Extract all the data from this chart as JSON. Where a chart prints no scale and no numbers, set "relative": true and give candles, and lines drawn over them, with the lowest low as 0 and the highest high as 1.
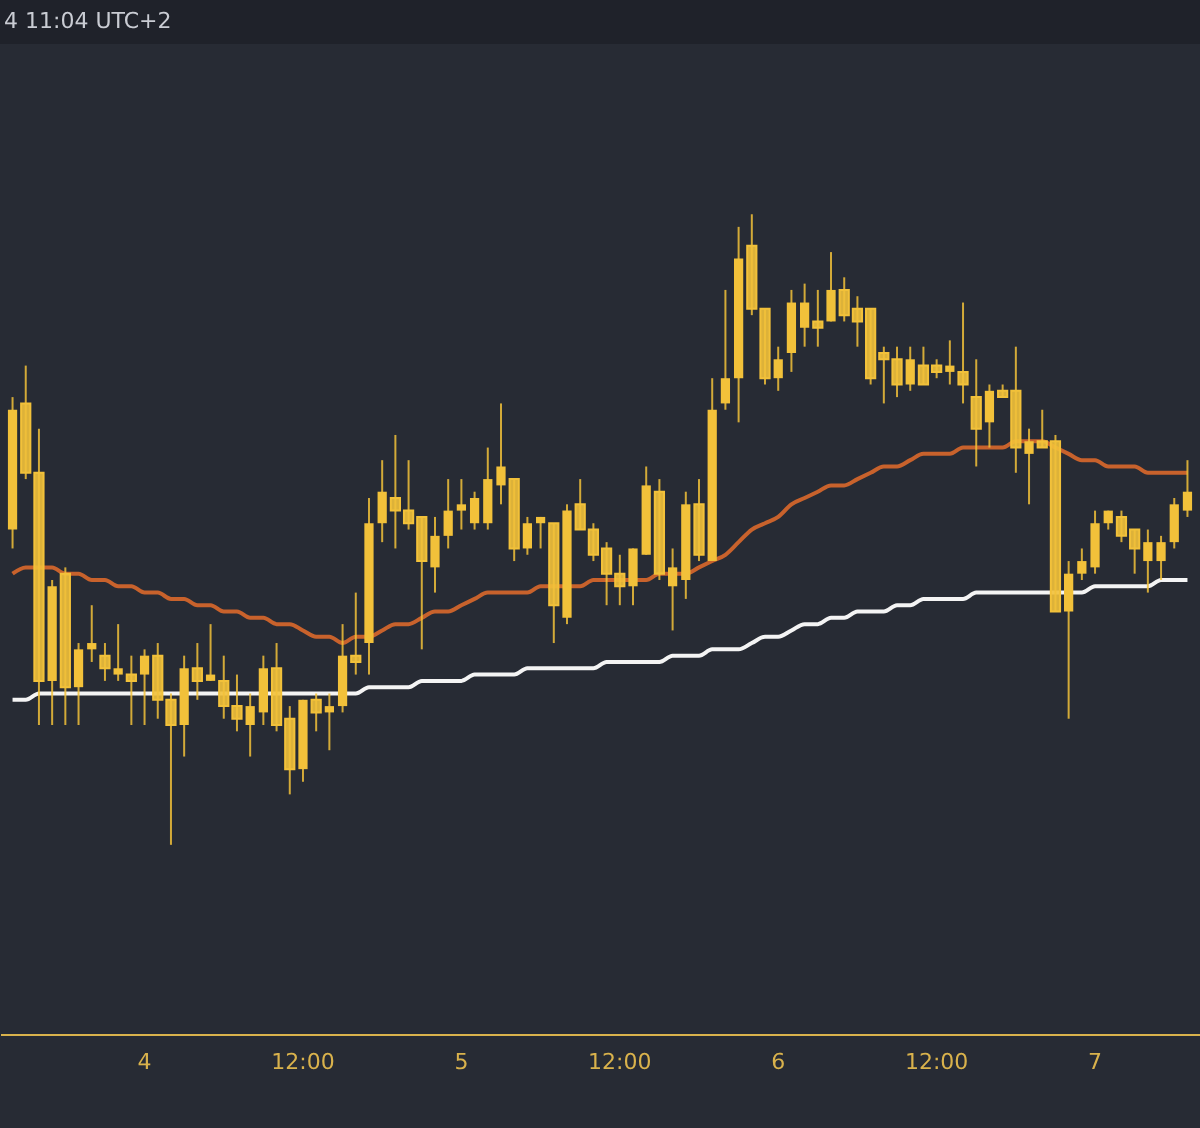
{
  "chart_data": {
    "type": "candlestick",
    "relative": true,
    "color": "#f2c13a",
    "legend": false,
    "annotations": [
      "4 11:04 UTC+2"
    ],
    "categories": [
      null,
      null,
      null,
      null,
      null,
      null,
      null,
      null,
      null,
      null,
      "4",
      null,
      null,
      null,
      null,
      null,
      null,
      null,
      null,
      null,
      null,
      null,
      "12:00",
      null,
      null,
      null,
      null,
      null,
      null,
      null,
      null,
      null,
      null,
      null,
      "5",
      null,
      null,
      null,
      null,
      null,
      null,
      null,
      null,
      null,
      null,
      null,
      "12:00",
      null,
      null,
      null,
      null,
      null,
      null,
      null,
      null,
      null,
      null,
      null,
      "6",
      null,
      null,
      null,
      null,
      null,
      null,
      null,
      null,
      null,
      null,
      null,
      "12:00",
      null,
      null,
      null,
      null,
      null,
      null,
      null,
      null,
      null,
      null,
      null,
      "7",
      null,
      null,
      null,
      null,
      null,
      null,
      null
    ],
    "ohlc": [
      [
        0.5,
        0.71,
        0.47,
        0.69
      ],
      [
        0.7,
        0.76,
        0.58,
        0.59
      ],
      [
        0.59,
        0.66,
        0.19,
        0.26
      ],
      [
        0.26,
        0.42,
        0.19,
        0.41
      ],
      [
        0.43,
        0.44,
        0.19,
        0.25
      ],
      [
        0.25,
        0.32,
        0.19,
        0.31
      ],
      [
        0.31,
        0.38,
        0.29,
        0.32
      ],
      [
        0.3,
        0.32,
        0.26,
        0.28
      ],
      [
        0.27,
        0.35,
        0.26,
        0.28
      ],
      [
        0.27,
        0.3,
        0.19,
        0.26
      ],
      [
        0.27,
        0.31,
        0.19,
        0.3
      ],
      [
        0.3,
        0.32,
        0.2,
        0.23
      ],
      [
        0.23,
        0.24,
        0,
        0.19
      ],
      [
        0.19,
        0.3,
        0.14,
        0.28
      ],
      [
        0.28,
        0.32,
        0.23,
        0.26
      ],
      [
        0.26,
        0.35,
        0.26,
        0.27
      ],
      [
        0.26,
        0.3,
        0.2,
        0.22
      ],
      [
        0.22,
        0.27,
        0.18,
        0.2
      ],
      [
        0.19,
        0.24,
        0.14,
        0.22
      ],
      [
        0.21,
        0.3,
        0.19,
        0.28
      ],
      [
        0.28,
        0.32,
        0.18,
        0.19
      ],
      [
        0.2,
        0.22,
        0.08,
        0.12
      ],
      [
        0.12,
        0.23,
        0.1,
        0.23
      ],
      [
        0.23,
        0.24,
        0.18,
        0.21
      ],
      [
        0.21,
        0.24,
        0.15,
        0.22
      ],
      [
        0.22,
        0.35,
        0.21,
        0.3
      ],
      [
        0.3,
        0.4,
        0.27,
        0.29
      ],
      [
        0.32,
        0.55,
        0.27,
        0.51
      ],
      [
        0.51,
        0.61,
        0.48,
        0.56
      ],
      [
        0.55,
        0.65,
        0.47,
        0.53
      ],
      [
        0.53,
        0.61,
        0.5,
        0.51
      ],
      [
        0.52,
        0.52,
        0.31,
        0.45
      ],
      [
        0.44,
        0.52,
        0.4,
        0.49
      ],
      [
        0.49,
        0.58,
        0.47,
        0.53
      ],
      [
        0.53,
        0.58,
        0.5,
        0.54
      ],
      [
        0.51,
        0.56,
        0.5,
        0.55
      ],
      [
        0.51,
        0.63,
        0.5,
        0.58
      ],
      [
        0.57,
        0.7,
        0.54,
        0.6
      ],
      [
        0.58,
        0.58,
        0.45,
        0.47
      ],
      [
        0.47,
        0.52,
        0.46,
        0.51
      ],
      [
        0.51,
        0.52,
        0.47,
        0.52
      ],
      [
        0.51,
        0.51,
        0.32,
        0.38
      ],
      [
        0.36,
        0.54,
        0.35,
        0.53
      ],
      [
        0.54,
        0.58,
        0.5,
        0.5
      ],
      [
        0.5,
        0.51,
        0.45,
        0.46
      ],
      [
        0.47,
        0.48,
        0.38,
        0.43
      ],
      [
        0.43,
        0.46,
        0.38,
        0.41
      ],
      [
        0.41,
        0.47,
        0.38,
        0.47
      ],
      [
        0.46,
        0.6,
        0.46,
        0.57
      ],
      [
        0.56,
        0.58,
        0.42,
        0.43
      ],
      [
        0.41,
        0.47,
        0.34,
        0.44
      ],
      [
        0.42,
        0.56,
        0.39,
        0.54
      ],
      [
        0.54,
        0.58,
        0.45,
        0.46
      ],
      [
        0.45,
        0.74,
        0.45,
        0.69
      ],
      [
        0.7,
        0.88,
        0.69,
        0.74
      ],
      [
        0.74,
        0.98,
        0.67,
        0.93
      ],
      [
        0.95,
        1,
        0.84,
        0.85
      ],
      [
        0.85,
        0.85,
        0.73,
        0.74
      ],
      [
        0.74,
        0.79,
        0.72,
        0.77
      ],
      [
        0.78,
        0.88,
        0.75,
        0.86
      ],
      [
        0.82,
        0.89,
        0.79,
        0.86
      ],
      [
        0.83,
        0.88,
        0.79,
        0.82
      ],
      [
        0.83,
        0.94,
        0.83,
        0.88
      ],
      [
        0.88,
        0.9,
        0.83,
        0.84
      ],
      [
        0.85,
        0.87,
        0.79,
        0.83
      ],
      [
        0.85,
        0.85,
        0.73,
        0.74
      ],
      [
        0.78,
        0.79,
        0.7,
        0.77
      ],
      [
        0.77,
        0.79,
        0.71,
        0.73
      ],
      [
        0.73,
        0.79,
        0.72,
        0.77
      ],
      [
        0.76,
        0.79,
        0.73,
        0.73
      ],
      [
        0.76,
        0.77,
        0.74,
        0.75
      ],
      [
        0.75,
        0.8,
        0.73,
        0.76
      ],
      [
        0.75,
        0.86,
        0.7,
        0.73
      ],
      [
        0.71,
        0.77,
        0.6,
        0.66
      ],
      [
        0.67,
        0.73,
        0.63,
        0.72
      ],
      [
        0.72,
        0.73,
        0.71,
        0.71
      ],
      [
        0.72,
        0.79,
        0.59,
        0.63
      ],
      [
        0.62,
        0.66,
        0.54,
        0.64
      ],
      [
        0.64,
        0.69,
        0.63,
        0.63
      ],
      [
        0.64,
        0.65,
        0.37,
        0.37
      ],
      [
        0.37,
        0.45,
        0.2,
        0.43
      ],
      [
        0.43,
        0.47,
        0.42,
        0.45
      ],
      [
        0.44,
        0.53,
        0.43,
        0.51
      ],
      [
        0.51,
        0.53,
        0.5,
        0.53
      ],
      [
        0.52,
        0.53,
        0.48,
        0.49
      ],
      [
        0.5,
        0.5,
        0.43,
        0.47
      ],
      [
        0.45,
        0.5,
        0.4,
        0.48
      ],
      [
        0.45,
        0.49,
        0.42,
        0.48
      ],
      [
        0.48,
        0.55,
        0.47,
        0.54
      ],
      [
        0.53,
        0.61,
        0.52,
        0.56
      ]
    ],
    "series": [
      {
        "type": "line",
        "color": "#c8622c",
        "values": [
          0.43,
          0.44,
          0.44,
          0.44,
          0.43,
          0.43,
          0.42,
          0.42,
          0.41,
          0.41,
          0.4,
          0.4,
          0.39,
          0.39,
          0.38,
          0.38,
          0.37,
          0.37,
          0.36,
          0.36,
          0.35,
          0.35,
          0.34,
          0.33,
          0.33,
          0.32,
          0.33,
          0.33,
          0.34,
          0.35,
          0.35,
          0.36,
          0.37,
          0.37,
          0.38,
          0.39,
          0.4,
          0.4,
          0.4,
          0.4,
          0.41,
          0.41,
          0.41,
          0.41,
          0.42,
          0.42,
          0.42,
          0.42,
          0.42,
          0.43,
          0.43,
          0.43,
          0.44,
          0.45,
          0.46,
          0.48,
          0.5,
          0.51,
          0.52,
          0.54,
          0.55,
          0.56,
          0.57,
          0.57,
          0.58,
          0.59,
          0.6,
          0.6,
          0.61,
          0.62,
          0.62,
          0.62,
          0.63,
          0.63,
          0.63,
          0.63,
          0.64,
          0.64,
          0.64,
          0.63,
          0.62,
          0.61,
          0.61,
          0.6,
          0.6,
          0.6,
          0.59,
          0.59,
          0.59,
          0.59
        ]
      },
      {
        "type": "line",
        "color": "#f4f4f4",
        "values": [
          0.23,
          0.23,
          0.24,
          0.24,
          0.24,
          0.24,
          0.24,
          0.24,
          0.24,
          0.24,
          0.24,
          0.24,
          0.24,
          0.24,
          0.24,
          0.24,
          0.24,
          0.24,
          0.24,
          0.24,
          0.24,
          0.24,
          0.24,
          0.24,
          0.24,
          0.24,
          0.24,
          0.25,
          0.25,
          0.25,
          0.25,
          0.26,
          0.26,
          0.26,
          0.26,
          0.27,
          0.27,
          0.27,
          0.27,
          0.28,
          0.28,
          0.28,
          0.28,
          0.28,
          0.28,
          0.29,
          0.29,
          0.29,
          0.29,
          0.29,
          0.3,
          0.3,
          0.3,
          0.31,
          0.31,
          0.31,
          0.32,
          0.33,
          0.33,
          0.34,
          0.35,
          0.35,
          0.36,
          0.36,
          0.37,
          0.37,
          0.37,
          0.38,
          0.38,
          0.39,
          0.39,
          0.39,
          0.39,
          0.4,
          0.4,
          0.4,
          0.4,
          0.4,
          0.4,
          0.4,
          0.4,
          0.4,
          0.41,
          0.41,
          0.41,
          0.41,
          0.41,
          0.42,
          0.42,
          0.42
        ]
      }
    ]
  }
}
